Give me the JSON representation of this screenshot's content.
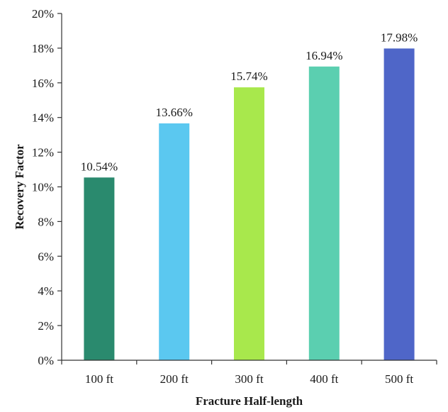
{
  "chart_data": {
    "type": "bar",
    "title": "",
    "xlabel": "Fracture Half-length",
    "ylabel": "Recovery Factor",
    "categories": [
      "100 ft",
      "200 ft",
      "300 ft",
      "400 ft",
      "500 ft"
    ],
    "values": [
      10.54,
      13.66,
      15.74,
      16.94,
      17.98
    ],
    "data_labels": [
      "10.54%",
      "13.66%",
      "15.74%",
      "16.94%",
      "17.98%"
    ],
    "colors": [
      "#2a8a6e",
      "#5bc8f0",
      "#a8e84c",
      "#5bcfb0",
      "#4f66c8"
    ],
    "ylim": [
      0,
      20
    ],
    "yticks": [
      0,
      2,
      4,
      6,
      8,
      10,
      12,
      14,
      16,
      18,
      20
    ],
    "ytick_labels": [
      "0%",
      "2%",
      "4%",
      "6%",
      "8%",
      "10%",
      "12%",
      "14%",
      "16%",
      "18%",
      "20%"
    ],
    "grid": false,
    "legend": "none"
  }
}
